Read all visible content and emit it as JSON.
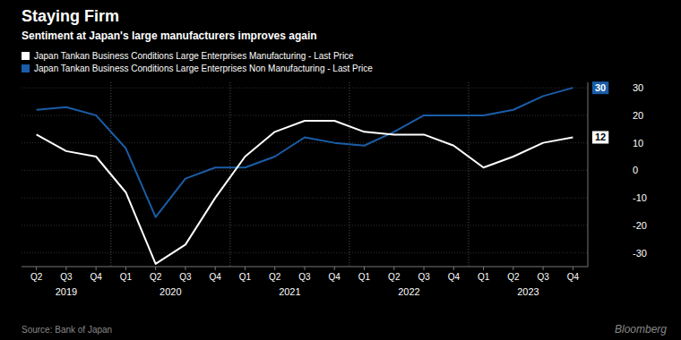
{
  "chart_data": {
    "type": "line",
    "title": "Staying Firm",
    "subtitle": "Sentiment at Japan's large manufacturers improves again",
    "categories": [
      "Q2",
      "Q3",
      "Q4",
      "Q1",
      "Q2",
      "Q3",
      "Q4",
      "Q1",
      "Q2",
      "Q3",
      "Q4",
      "Q1",
      "Q2",
      "Q3",
      "Q4",
      "Q1",
      "Q2",
      "Q3",
      "Q4"
    ],
    "groups": [
      {
        "label": "2019",
        "size": 3
      },
      {
        "label": "2020",
        "size": 4
      },
      {
        "label": "2021",
        "size": 4
      },
      {
        "label": "2022",
        "size": 4
      },
      {
        "label": "2023",
        "size": 4
      }
    ],
    "series": [
      {
        "name": "Japan Tankan Business Conditions Large Enterprises Manufacturing - Last Price",
        "color": "#ffffff",
        "values": [
          13,
          7,
          5,
          -8,
          -34,
          -27,
          -10,
          5,
          14,
          18,
          18,
          14,
          13,
          13,
          9,
          1,
          5,
          10,
          12
        ],
        "end_label": "12"
      },
      {
        "name": "Japan Tankan Business Conditions Large Enterprises Non Manufacturing - Last Price",
        "color": "#1a5da8",
        "values": [
          22,
          23,
          20,
          8,
          -17,
          -3,
          1,
          1,
          5,
          12,
          10,
          9,
          14,
          20,
          20,
          20,
          22,
          27,
          30
        ],
        "end_label": "30"
      }
    ],
    "ylim": [
      -35,
      32
    ],
    "yticks": [
      -30,
      -20,
      -10,
      0,
      10,
      20,
      30
    ],
    "grid": true,
    "legend": "top",
    "source": "Source: Bank of Japan",
    "watermark": "Bloomberg"
  }
}
